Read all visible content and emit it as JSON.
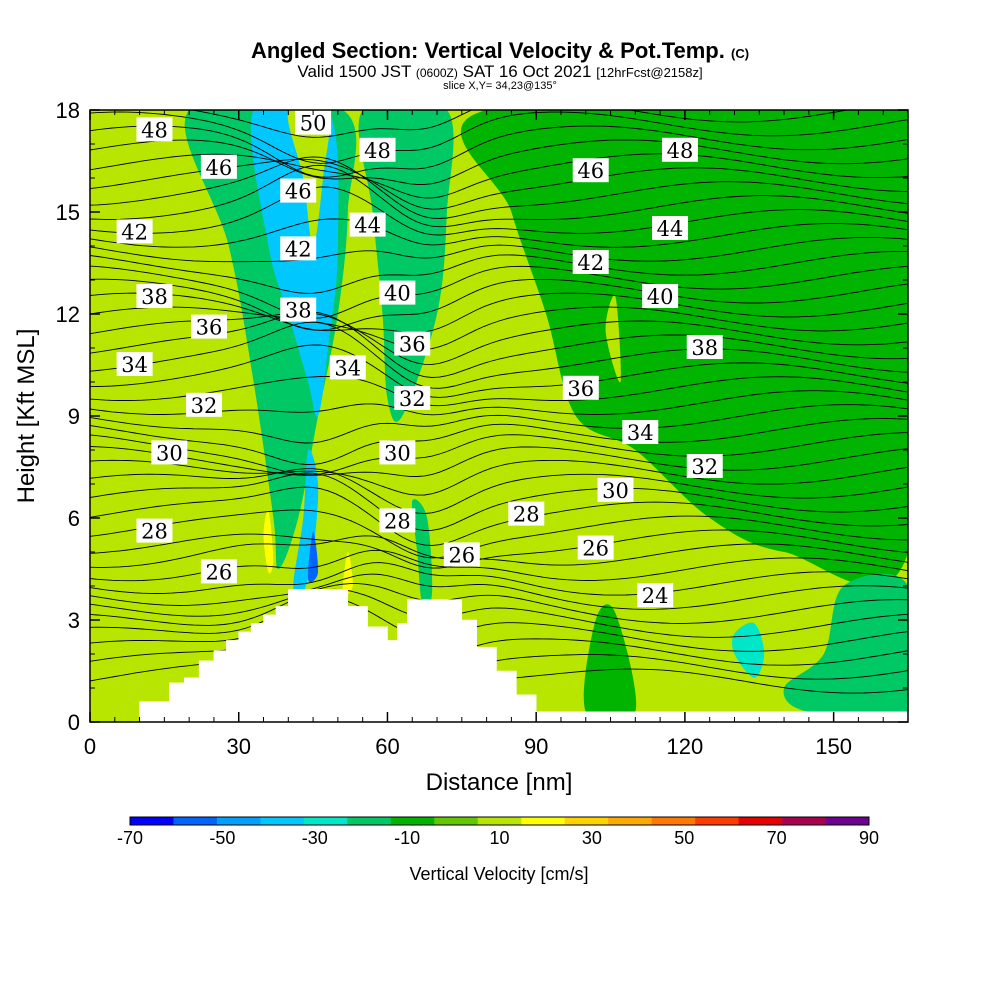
{
  "header": {
    "title": "Angled Section: Vertical Velocity & Pot.Temp.",
    "title_unit": "(C)",
    "valid_prefix": "Valid 1500 JST",
    "valid_utc": "(0600Z)",
    "valid_date": "SAT 16 Oct 2021",
    "forecast_info": "[12hrFcst@2158z]",
    "slice_info": "slice X,Y= 34,23@135°"
  },
  "colors": {
    "background_field": "#b8e600",
    "frame": "#000000",
    "terrain": "#ffffff",
    "contour_line": "#000000"
  },
  "chart_data": {
    "type": "heatmap",
    "title": "Angled Section: Vertical Velocity & Pot.Temp.",
    "xlabel": "Distance [nm]",
    "ylabel": "Height [Kft MSL]",
    "xlim": [
      0,
      165
    ],
    "ylim": [
      0,
      18
    ],
    "x_ticks": [
      0,
      30,
      60,
      90,
      120,
      150
    ],
    "y_ticks": [
      0,
      3,
      6,
      9,
      12,
      15,
      18
    ],
    "colorbar": {
      "label": "Vertical Velocity [cm/s]",
      "levels": [
        -70,
        -60,
        -50,
        -40,
        -30,
        -20,
        -10,
        0,
        10,
        20,
        30,
        40,
        50,
        60,
        70,
        80,
        90
      ],
      "tick_labels": [
        "-70",
        "-50",
        "-30",
        "-10",
        "10",
        "30",
        "50",
        "70",
        "90"
      ],
      "colors": [
        "#0000ff",
        "#0064ff",
        "#00a0ff",
        "#00c8ff",
        "#00e6c8",
        "#00c864",
        "#00b400",
        "#64c800",
        "#b8e600",
        "#ffff00",
        "#ffd200",
        "#ffaa00",
        "#ff7800",
        "#ff3c00",
        "#e60000",
        "#aa0050",
        "#6e0090"
      ]
    },
    "velocity_regions": [
      {
        "value": -15,
        "polygon": [
          [
            20,
            18
          ],
          [
            28,
            14
          ],
          [
            33,
            10
          ],
          [
            37,
            6
          ],
          [
            38,
            4.5
          ],
          [
            42,
            6
          ],
          [
            46,
            9
          ],
          [
            50,
            12
          ],
          [
            52,
            15
          ],
          [
            51,
            18
          ]
        ]
      },
      {
        "value": -35,
        "polygon": [
          [
            33,
            18
          ],
          [
            36,
            14
          ],
          [
            40,
            12
          ],
          [
            44,
            10
          ],
          [
            46,
            9
          ],
          [
            48,
            11
          ],
          [
            50,
            14
          ],
          [
            48,
            18
          ]
        ]
      },
      {
        "value": -40,
        "polygon": [
          [
            41,
            4
          ],
          [
            43,
            6
          ],
          [
            44,
            8
          ],
          [
            46,
            7
          ],
          [
            45,
            5
          ],
          [
            43,
            3.8
          ]
        ]
      },
      {
        "value": -60,
        "polygon": [
          [
            44,
            4.2
          ],
          [
            45,
            5.6
          ],
          [
            46,
            4.4
          ]
        ]
      },
      {
        "value": -15,
        "polygon": [
          [
            55,
            18
          ],
          [
            57,
            15
          ],
          [
            59,
            12
          ],
          [
            60,
            9.5
          ],
          [
            63,
            9
          ],
          [
            70,
            12
          ],
          [
            72,
            15
          ],
          [
            72,
            18
          ]
        ]
      },
      {
        "value": -15,
        "polygon": [
          [
            65,
            6.5
          ],
          [
            66,
            5
          ],
          [
            67,
            3.5
          ],
          [
            69,
            3.8
          ],
          [
            68,
            6
          ]
        ]
      },
      {
        "value": -10,
        "polygon": [
          [
            80,
            18
          ],
          [
            85,
            15
          ],
          [
            92,
            12
          ],
          [
            98,
            9
          ],
          [
            110,
            8
          ],
          [
            125,
            6
          ],
          [
            140,
            5
          ],
          [
            165,
            5
          ],
          [
            165,
            18
          ]
        ]
      },
      {
        "value": -15,
        "polygon": [
          [
            140,
            1
          ],
          [
            148,
            2
          ],
          [
            152,
            4
          ],
          [
            165,
            4
          ],
          [
            165,
            0.3
          ],
          [
            145,
            0.3
          ]
        ]
      },
      {
        "value": -25,
        "polygon": [
          [
            130,
            2
          ],
          [
            134,
            1.3
          ],
          [
            136,
            2
          ],
          [
            134,
            2.9
          ],
          [
            130,
            2.6
          ]
        ]
      },
      {
        "value": -10,
        "polygon": [
          [
            100,
            0.3
          ],
          [
            102,
            3
          ],
          [
            106,
            3.2
          ],
          [
            110,
            0.3
          ]
        ]
      },
      {
        "value": 15,
        "polygon": [
          [
            4,
            12
          ],
          [
            7,
            9
          ],
          [
            10,
            8
          ],
          [
            11,
            9.5
          ],
          [
            9,
            11
          ],
          [
            6,
            12.5
          ]
        ]
      },
      {
        "value": 15,
        "polygon": [
          [
            24,
            14
          ],
          [
            28,
            11
          ],
          [
            30,
            9
          ],
          [
            31,
            11
          ],
          [
            28,
            13.5
          ]
        ]
      },
      {
        "value": 15,
        "polygon": [
          [
            34,
            7.5
          ],
          [
            37,
            5
          ],
          [
            38,
            3.5
          ],
          [
            36,
            3.2
          ],
          [
            34,
            4.5
          ],
          [
            33,
            6.5
          ]
        ]
      },
      {
        "value": 15,
        "polygon": [
          [
            40,
            18
          ],
          [
            43,
            16
          ],
          [
            45,
            14
          ],
          [
            47,
            16
          ],
          [
            48,
            18
          ]
        ]
      },
      {
        "value": 15,
        "polygon": [
          [
            50,
            6
          ],
          [
            53,
            5
          ],
          [
            55,
            3.5
          ],
          [
            52,
            3.3
          ],
          [
            49,
            4.5
          ]
        ]
      },
      {
        "value": 15,
        "polygon": [
          [
            60,
            6
          ],
          [
            62,
            4.5
          ],
          [
            63,
            3
          ],
          [
            60,
            3
          ],
          [
            59,
            5
          ]
        ]
      },
      {
        "value": 15,
        "polygon": [
          [
            71,
            8.5
          ],
          [
            74,
            6
          ],
          [
            75,
            3.5
          ],
          [
            72,
            3.6
          ],
          [
            70,
            6
          ]
        ]
      },
      {
        "value": 15,
        "polygon": [
          [
            104,
            11.5
          ],
          [
            107,
            10
          ],
          [
            106,
            12.5
          ]
        ]
      },
      {
        "value": 25,
        "polygon": [
          [
            36,
            6.2
          ],
          [
            37,
            4.8
          ],
          [
            36,
            4.4
          ],
          [
            35,
            5.5
          ]
        ]
      },
      {
        "value": 25,
        "polygon": [
          [
            52,
            5
          ],
          [
            53,
            4
          ],
          [
            51,
            3.8
          ]
        ]
      }
    ],
    "isentropes": {
      "levels": [
        24,
        26,
        28,
        30,
        32,
        34,
        36,
        38,
        40,
        42,
        44,
        46,
        48,
        50
      ],
      "labels": [
        {
          "text": "48",
          "x": 13,
          "y": 17.4
        },
        {
          "text": "46",
          "x": 26,
          "y": 16.3
        },
        {
          "text": "42",
          "x": 9,
          "y": 14.4
        },
        {
          "text": "38",
          "x": 13,
          "y": 12.5
        },
        {
          "text": "36",
          "x": 24,
          "y": 11.6
        },
        {
          "text": "34",
          "x": 9,
          "y": 10.5
        },
        {
          "text": "32",
          "x": 23,
          "y": 9.3
        },
        {
          "text": "30",
          "x": 16,
          "y": 7.9
        },
        {
          "text": "28",
          "x": 13,
          "y": 5.6
        },
        {
          "text": "26",
          "x": 26,
          "y": 4.4
        },
        {
          "text": "50",
          "x": 45,
          "y": 17.6
        },
        {
          "text": "46",
          "x": 42,
          "y": 15.6
        },
        {
          "text": "42",
          "x": 42,
          "y": 13.9
        },
        {
          "text": "38",
          "x": 42,
          "y": 12.1
        },
        {
          "text": "34",
          "x": 52,
          "y": 10.4
        },
        {
          "text": "48",
          "x": 58,
          "y": 16.8
        },
        {
          "text": "44",
          "x": 56,
          "y": 14.6
        },
        {
          "text": "40",
          "x": 62,
          "y": 12.6
        },
        {
          "text": "36",
          "x": 65,
          "y": 11.1
        },
        {
          "text": "32",
          "x": 65,
          "y": 9.5
        },
        {
          "text": "30",
          "x": 62,
          "y": 7.9
        },
        {
          "text": "28",
          "x": 62,
          "y": 5.9
        },
        {
          "text": "26",
          "x": 75,
          "y": 4.9
        },
        {
          "text": "46",
          "x": 101,
          "y": 16.2
        },
        {
          "text": "48",
          "x": 119,
          "y": 16.8
        },
        {
          "text": "44",
          "x": 117,
          "y": 14.5
        },
        {
          "text": "42",
          "x": 101,
          "y": 13.5
        },
        {
          "text": "40",
          "x": 115,
          "y": 12.5
        },
        {
          "text": "38",
          "x": 124,
          "y": 11.0
        },
        {
          "text": "36",
          "x": 99,
          "y": 9.8
        },
        {
          "text": "34",
          "x": 111,
          "y": 8.5
        },
        {
          "text": "32",
          "x": 124,
          "y": 7.5
        },
        {
          "text": "30",
          "x": 106,
          "y": 6.8
        },
        {
          "text": "28",
          "x": 88,
          "y": 6.1
        },
        {
          "text": "26",
          "x": 102,
          "y": 5.1
        },
        {
          "text": "24",
          "x": 114,
          "y": 3.7
        }
      ]
    },
    "terrain_profile": [
      [
        0,
        0
      ],
      [
        10,
        0
      ],
      [
        10,
        0.6
      ],
      [
        16,
        0.6
      ],
      [
        16,
        1.0
      ],
      [
        22,
        1.3
      ],
      [
        25,
        1.8
      ],
      [
        30,
        2.4
      ],
      [
        35,
        2.9
      ],
      [
        40,
        3.4
      ],
      [
        42,
        3.9
      ],
      [
        50,
        3.9
      ],
      [
        52,
        3.4
      ],
      [
        56,
        2.8
      ],
      [
        60,
        2.4
      ],
      [
        62,
        2.4
      ],
      [
        64,
        2.9
      ],
      [
        66,
        3.6
      ],
      [
        71,
        3.6
      ],
      [
        75,
        3.0
      ],
      [
        78,
        2.2
      ],
      [
        82,
        1.5
      ],
      [
        86,
        0.8
      ],
      [
        90,
        0.3
      ],
      [
        165,
        0.3
      ],
      [
        165,
        0
      ]
    ]
  }
}
